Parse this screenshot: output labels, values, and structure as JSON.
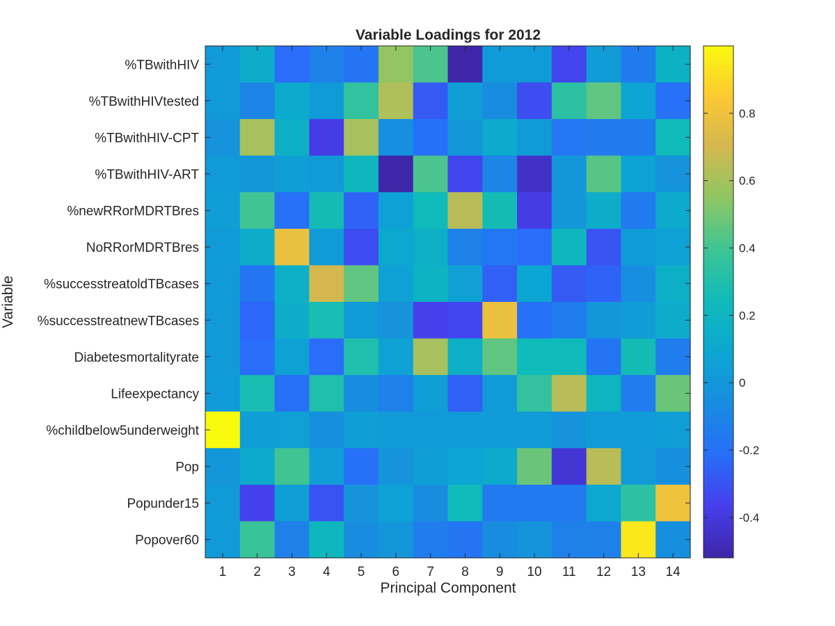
{
  "chart_data": {
    "type": "heatmap",
    "title": "Variable Loadings for 2012",
    "xlabel": "Principal Component",
    "ylabel": "Variable",
    "x_categories": [
      "1",
      "2",
      "3",
      "4",
      "5",
      "6",
      "7",
      "8",
      "9",
      "10",
      "11",
      "12",
      "13",
      "14"
    ],
    "y_categories": [
      "%TBwithHIV",
      "%TBwithHIVtested",
      "%TBwithHIV-CPT",
      "%TBwithHIV-ART",
      "%newRRorMDRTBres",
      "NoRRorMDRTBres",
      "%successtreatoldTBcases",
      "%successtreatnewTBcases",
      "Diabetesmortalityrate",
      "Lifeexpectancy",
      "%childbelow5underweight",
      "Pop",
      "Popunder15",
      "Popover60"
    ],
    "values": [
      [
        0.02,
        0.14,
        -0.22,
        -0.12,
        -0.18,
        0.56,
        0.42,
        -0.52,
        0.02,
        0.02,
        -0.35,
        0.03,
        -0.15,
        0.17
      ],
      [
        0.02,
        -0.1,
        0.12,
        0.02,
        0.36,
        0.62,
        -0.28,
        0.04,
        -0.06,
        -0.32,
        0.34,
        0.46,
        0.08,
        -0.2
      ],
      [
        -0.02,
        0.6,
        0.16,
        -0.38,
        0.6,
        -0.05,
        -0.2,
        0.0,
        0.12,
        0.02,
        -0.17,
        -0.15,
        -0.15,
        0.24
      ],
      [
        0.02,
        0.0,
        0.04,
        0.02,
        0.22,
        -0.52,
        0.42,
        -0.35,
        -0.1,
        -0.45,
        0.0,
        0.44,
        0.07,
        -0.02
      ],
      [
        0.04,
        0.4,
        -0.2,
        0.26,
        -0.25,
        0.06,
        0.24,
        0.64,
        0.26,
        -0.38,
        0.0,
        0.14,
        -0.15,
        0.12
      ],
      [
        0.02,
        0.14,
        0.78,
        0.02,
        -0.32,
        0.1,
        0.16,
        -0.12,
        -0.17,
        -0.22,
        0.22,
        -0.3,
        0.02,
        0.06
      ],
      [
        0.02,
        -0.18,
        0.16,
        0.7,
        0.46,
        0.06,
        0.18,
        0.05,
        -0.26,
        0.09,
        -0.28,
        -0.25,
        -0.05,
        0.16
      ],
      [
        0.02,
        -0.24,
        0.14,
        0.28,
        0.02,
        -0.02,
        -0.36,
        -0.34,
        0.78,
        -0.2,
        -0.14,
        0.0,
        0.03,
        0.13
      ],
      [
        0.02,
        -0.22,
        0.06,
        -0.22,
        0.3,
        0.06,
        0.6,
        0.16,
        0.46,
        0.24,
        0.24,
        -0.18,
        0.26,
        -0.14
      ],
      [
        0.02,
        0.28,
        -0.2,
        0.3,
        -0.06,
        -0.12,
        0.04,
        -0.26,
        0.02,
        0.36,
        0.64,
        0.2,
        -0.14,
        0.48
      ],
      [
        1.0,
        0.04,
        0.05,
        -0.04,
        0.04,
        0.03,
        0.02,
        0.02,
        0.02,
        0.02,
        -0.02,
        0.02,
        0.03,
        0.04
      ],
      [
        0.0,
        0.12,
        0.4,
        0.04,
        -0.2,
        -0.02,
        0.04,
        0.08,
        0.12,
        0.48,
        -0.42,
        0.64,
        0.02,
        -0.04
      ],
      [
        0.02,
        -0.36,
        0.04,
        -0.3,
        -0.02,
        0.06,
        -0.06,
        0.24,
        -0.16,
        -0.16,
        -0.16,
        0.1,
        0.34,
        0.8
      ],
      [
        0.02,
        0.38,
        -0.12,
        0.22,
        -0.06,
        0.0,
        -0.14,
        -0.18,
        -0.06,
        -0.02,
        -0.12,
        -0.12,
        0.94,
        -0.04
      ]
    ],
    "colormap": "parula",
    "clim": [
      -0.52,
      1.0
    ],
    "colorbar_ticks": [
      {
        "value": 0.8,
        "label": "0.8"
      },
      {
        "value": 0.6,
        "label": "0.6"
      },
      {
        "value": 0.4,
        "label": "0.4"
      },
      {
        "value": 0.2,
        "label": "0.2"
      },
      {
        "value": 0.0,
        "label": "0"
      },
      {
        "value": -0.2,
        "label": "-0.2"
      },
      {
        "value": -0.4,
        "label": "-0.4"
      }
    ],
    "grid": false,
    "legend": "colorbar-right"
  }
}
